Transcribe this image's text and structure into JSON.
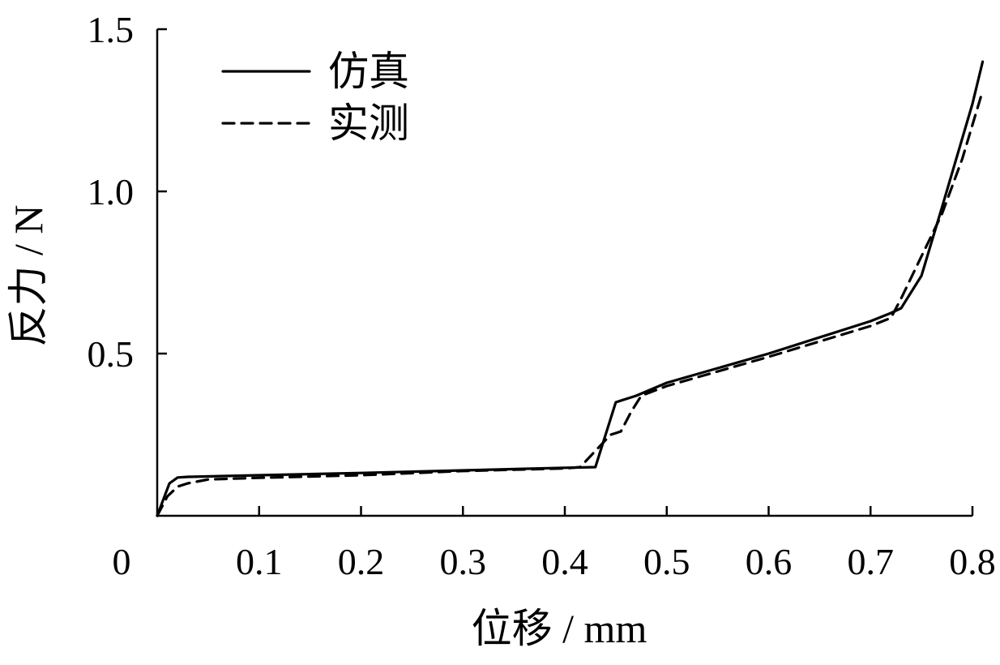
{
  "chart_data": {
    "type": "line",
    "xlabel": "位移 / mm",
    "ylabel": "反力 / N",
    "xlim": [
      0,
      0.8
    ],
    "ylim": [
      0,
      1.5
    ],
    "x_ticks": [
      0,
      0.1,
      0.2,
      0.3,
      0.4,
      0.5,
      0.6,
      0.7,
      0.8
    ],
    "x_tick_labels": [
      "0",
      "0.1",
      "0.2",
      "0.3",
      "0.4",
      "0.5",
      "0.6",
      "0.7",
      "0.8"
    ],
    "y_ticks": [
      0.5,
      1.0,
      1.5
    ],
    "y_tick_labels": [
      "0.5",
      "1.0",
      "1.5"
    ],
    "grid": false,
    "legend_position": "top-left",
    "series": [
      {
        "name": "仿真",
        "style": "solid",
        "color": "#000000",
        "points": [
          [
            0.0,
            0.0
          ],
          [
            0.006,
            0.05
          ],
          [
            0.012,
            0.1
          ],
          [
            0.02,
            0.118
          ],
          [
            0.03,
            0.12
          ],
          [
            0.1,
            0.125
          ],
          [
            0.2,
            0.132
          ],
          [
            0.3,
            0.14
          ],
          [
            0.4,
            0.148
          ],
          [
            0.43,
            0.15
          ],
          [
            0.45,
            0.35
          ],
          [
            0.47,
            0.37
          ],
          [
            0.5,
            0.41
          ],
          [
            0.6,
            0.5
          ],
          [
            0.7,
            0.6
          ],
          [
            0.72,
            0.625
          ],
          [
            0.73,
            0.64
          ],
          [
            0.75,
            0.74
          ],
          [
            0.77,
            0.95
          ],
          [
            0.8,
            1.27
          ],
          [
            0.81,
            1.4
          ]
        ]
      },
      {
        "name": "实测",
        "style": "dashed",
        "color": "#000000",
        "points": [
          [
            0.0,
            0.0
          ],
          [
            0.01,
            0.06
          ],
          [
            0.02,
            0.09
          ],
          [
            0.03,
            0.1
          ],
          [
            0.05,
            0.112
          ],
          [
            0.1,
            0.117
          ],
          [
            0.2,
            0.125
          ],
          [
            0.3,
            0.138
          ],
          [
            0.4,
            0.146
          ],
          [
            0.415,
            0.15
          ],
          [
            0.43,
            0.2
          ],
          [
            0.445,
            0.25
          ],
          [
            0.455,
            0.26
          ],
          [
            0.465,
            0.32
          ],
          [
            0.475,
            0.37
          ],
          [
            0.5,
            0.4
          ],
          [
            0.6,
            0.49
          ],
          [
            0.7,
            0.585
          ],
          [
            0.72,
            0.61
          ],
          [
            0.73,
            0.67
          ],
          [
            0.75,
            0.8
          ],
          [
            0.77,
            0.93
          ],
          [
            0.79,
            1.1
          ],
          [
            0.81,
            1.31
          ]
        ]
      }
    ]
  }
}
